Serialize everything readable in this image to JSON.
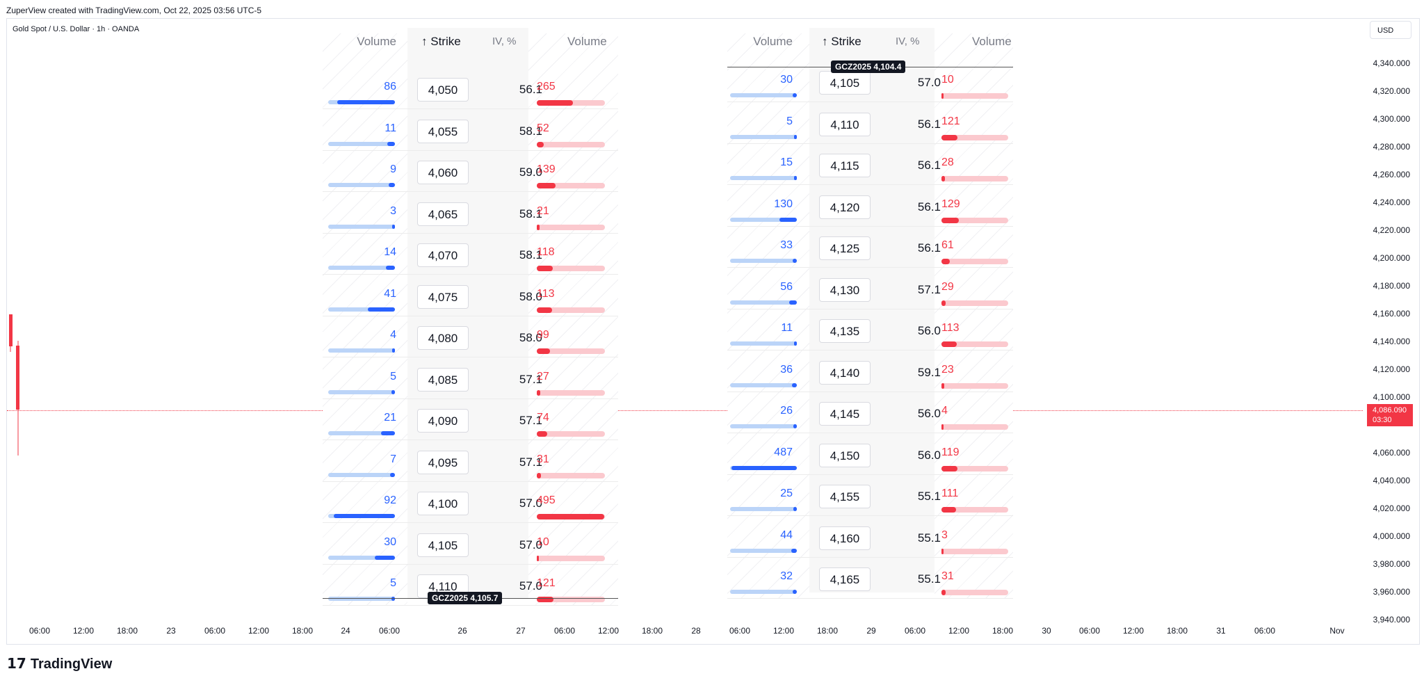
{
  "header": "ZuperView created with TradingView.com, Oct 22, 2025 03:56 UTC-5",
  "symbol": "Gold Spot / U.S. Dollar · 1h · OANDA",
  "currency": "USD",
  "price_axis": [
    "4,340.000",
    "4,320.000",
    "4,300.000",
    "4,280.000",
    "4,260.000",
    "4,240.000",
    "4,220.000",
    "4,200.000",
    "4,180.000",
    "4,160.000",
    "4,140.000",
    "4,120.000",
    "4,100.000",
    "4,060.000",
    "4,040.000",
    "4,020.000",
    "4,000.000",
    "3,980.000",
    "3,960.000",
    "3,940.000"
  ],
  "current_price": {
    "value": "4,086.090",
    "countdown": "03:30"
  },
  "time_axis": [
    "06:00",
    "12:00",
    "18:00",
    "23",
    "06:00",
    "12:00",
    "18:00",
    "24",
    "06:00",
    "26",
    "27",
    "06:00",
    "12:00",
    "18:00",
    "28",
    "06:00",
    "12:00",
    "18:00",
    "29",
    "06:00",
    "12:00",
    "18:00",
    "30",
    "06:00",
    "12:00",
    "18:00",
    "31",
    "06:00",
    "Nov"
  ],
  "columns": {
    "call_volume": "Volume",
    "strike": "Strike",
    "strike_sort_icon": "↑",
    "iv": "IV, %",
    "put_volume": "Volume"
  },
  "panels": [
    {
      "future_label": "GCZ2025 4,105.7",
      "rows": [
        {
          "call_vol": "86",
          "strike": "4,050",
          "iv": "56.1",
          "put_vol": "265"
        },
        {
          "call_vol": "11",
          "strike": "4,055",
          "iv": "58.1",
          "put_vol": "52"
        },
        {
          "call_vol": "9",
          "strike": "4,060",
          "iv": "59.0",
          "put_vol": "139"
        },
        {
          "call_vol": "3",
          "strike": "4,065",
          "iv": "58.1",
          "put_vol": "21"
        },
        {
          "call_vol": "14",
          "strike": "4,070",
          "iv": "58.1",
          "put_vol": "118"
        },
        {
          "call_vol": "41",
          "strike": "4,075",
          "iv": "58.0",
          "put_vol": "113"
        },
        {
          "call_vol": "4",
          "strike": "4,080",
          "iv": "58.0",
          "put_vol": "99"
        },
        {
          "call_vol": "5",
          "strike": "4,085",
          "iv": "57.1",
          "put_vol": "27"
        },
        {
          "call_vol": "21",
          "strike": "4,090",
          "iv": "57.1",
          "put_vol": "74"
        },
        {
          "call_vol": "7",
          "strike": "4,095",
          "iv": "57.1",
          "put_vol": "31"
        },
        {
          "call_vol": "92",
          "strike": "4,100",
          "iv": "57.0",
          "put_vol": "495"
        },
        {
          "call_vol": "30",
          "strike": "4,105",
          "iv": "57.0",
          "put_vol": "10"
        },
        {
          "call_vol": "5",
          "strike": "4,110",
          "iv": "57.0",
          "put_vol": "121"
        }
      ]
    },
    {
      "future_label": "GCZ2025 4,104.4",
      "rows": [
        {
          "call_vol": "30",
          "strike": "4,105",
          "iv": "57.0",
          "put_vol": "10"
        },
        {
          "call_vol": "5",
          "strike": "4,110",
          "iv": "56.1",
          "put_vol": "121"
        },
        {
          "call_vol": "15",
          "strike": "4,115",
          "iv": "56.1",
          "put_vol": "28"
        },
        {
          "call_vol": "130",
          "strike": "4,120",
          "iv": "56.1",
          "put_vol": "129"
        },
        {
          "call_vol": "33",
          "strike": "4,125",
          "iv": "56.1",
          "put_vol": "61"
        },
        {
          "call_vol": "56",
          "strike": "4,130",
          "iv": "57.1",
          "put_vol": "29"
        },
        {
          "call_vol": "11",
          "strike": "4,135",
          "iv": "56.0",
          "put_vol": "113"
        },
        {
          "call_vol": "36",
          "strike": "4,140",
          "iv": "59.1",
          "put_vol": "23"
        },
        {
          "call_vol": "26",
          "strike": "4,145",
          "iv": "56.0",
          "put_vol": "4"
        },
        {
          "call_vol": "487",
          "strike": "4,150",
          "iv": "56.0",
          "put_vol": "119"
        },
        {
          "call_vol": "25",
          "strike": "4,155",
          "iv": "55.1",
          "put_vol": "111"
        },
        {
          "call_vol": "44",
          "strike": "4,160",
          "iv": "55.1",
          "put_vol": "3"
        },
        {
          "call_vol": "32",
          "strike": "4,165",
          "iv": "55.1",
          "put_vol": "31"
        }
      ]
    }
  ],
  "brand": "TradingView",
  "colors": {
    "call": "#2962ff",
    "put": "#f23645",
    "candle": "#f23645"
  }
}
